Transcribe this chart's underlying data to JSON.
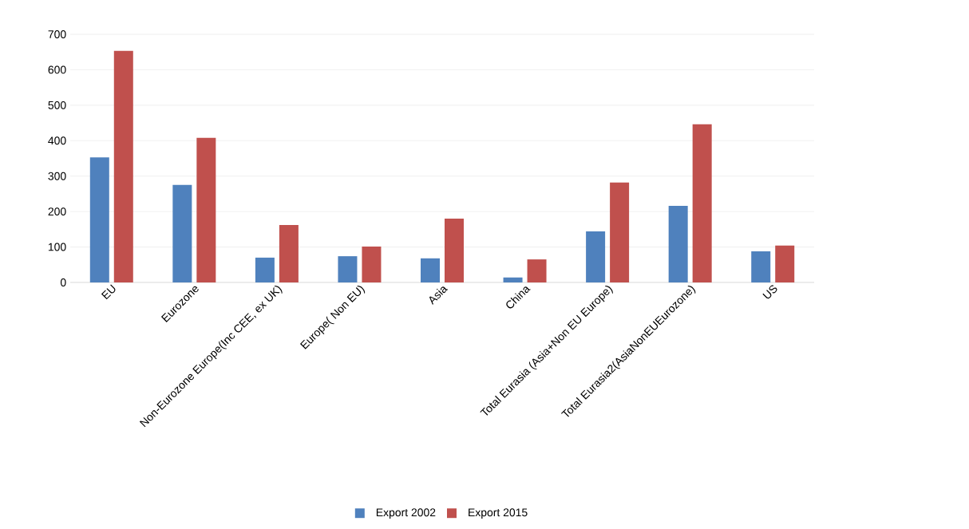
{
  "chart_data": {
    "type": "bar",
    "categories": [
      "EU",
      "Eurozone",
      "Non-Eurozone Europe(Inc CEE, ex UK)",
      "Europe( Non EU)",
      "Asia",
      "China",
      "Total Eurasia (Asia+Non EU Europe)",
      "Total Eurasia2(AsiaNonEUEurozone)",
      "US"
    ],
    "series": [
      {
        "name": "Export 2002",
        "color": "#4f81bd",
        "values": [
          353,
          275,
          70,
          74,
          68,
          14,
          144,
          216,
          88
        ]
      },
      {
        "name": "Export 2015",
        "color": "#c0504d",
        "values": [
          653,
          408,
          162,
          101,
          180,
          65,
          282,
          446,
          104
        ]
      }
    ],
    "ylim": [
      0,
      700
    ],
    "yticks": [
      0,
      100,
      200,
      300,
      400,
      500,
      600,
      700
    ],
    "grid": "y",
    "legend": "bottom"
  }
}
